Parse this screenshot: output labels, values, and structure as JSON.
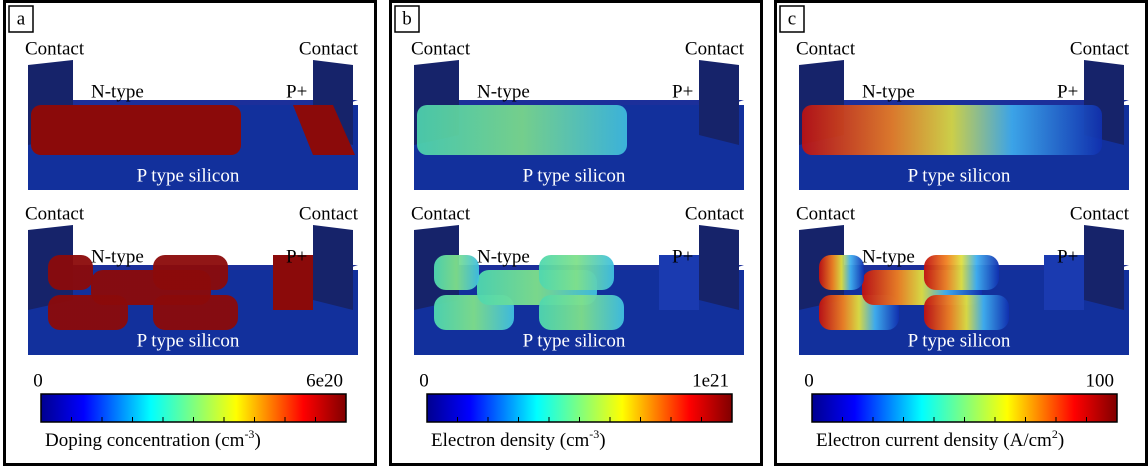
{
  "panels": [
    {
      "label": "a",
      "top": {
        "contact_left": "Contact",
        "contact_right": "Contact",
        "n_type": "N-type",
        "p_plus": "P+",
        "substrate": "P type silicon"
      },
      "bottom": {
        "contact_left": "Contact",
        "contact_right": "Contact",
        "n_type": "N-type",
        "p_plus": "P+",
        "substrate": "P type silicon"
      },
      "colorbar": {
        "min": "0",
        "max": "6e20",
        "title": "Doping concentration (cm",
        "title_sup": "-3",
        "title_end": ")"
      }
    },
    {
      "label": "b",
      "top": {
        "contact_left": "Contact",
        "contact_right": "Contact",
        "n_type": "N-type",
        "p_plus": "P+",
        "substrate": "P type silicon"
      },
      "bottom": {
        "contact_left": "Contact",
        "contact_right": "Contact",
        "n_type": "N-type",
        "p_plus": "P+",
        "substrate": "P type silicon"
      },
      "colorbar": {
        "min": "0",
        "max": "1e21",
        "title": "Electron density (cm",
        "title_sup": "-3",
        "title_end": ")"
      }
    },
    {
      "label": "c",
      "top": {
        "contact_left": "Contact",
        "contact_right": "Contact",
        "n_type": "N-type",
        "p_plus": "P+",
        "substrate": "P type silicon"
      },
      "bottom": {
        "contact_left": "Contact",
        "contact_right": "Contact",
        "n_type": "N-type",
        "p_plus": "P+",
        "substrate": "P type silicon"
      },
      "colorbar": {
        "min": "0",
        "max": "100",
        "title": "Electron current density (A/cm",
        "title_sup": "2",
        "title_end": ")"
      }
    }
  ]
}
